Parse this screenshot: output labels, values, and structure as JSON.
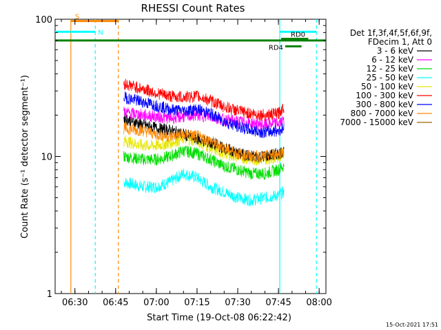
{
  "chart_data": {
    "type": "line",
    "title": "RHESSI Count Rates",
    "xlabel": "Start Time (19-Oct-08 06:22:42)",
    "ylabel": "Count Rate (s⁻¹ detector segment⁻¹)",
    "timestamp": "15-Oct-2021 17:51",
    "xlim": [
      "06:22:42",
      "08:02:30"
    ],
    "ylim": [
      1,
      100
    ],
    "yscale": "log",
    "grid": false,
    "x_ticks": [
      "06:30",
      "06:45",
      "07:00",
      "07:15",
      "07:30",
      "07:45",
      "08:00"
    ],
    "y_ticks": [
      "1",
      "10",
      "100"
    ],
    "legend": {
      "placement": "right",
      "header": [
        "Det 1f,3f,4f,5f,6f,9f,",
        "FDecim 1, Att 0"
      ]
    },
    "series": [
      {
        "name": "3 - 6 keV",
        "color": "#000000",
        "x": [
          "06:48",
          "06:55",
          "07:00",
          "07:05",
          "07:10",
          "07:15",
          "07:20",
          "07:25",
          "07:30",
          "07:35",
          "07:40",
          "07:45",
          "07:47"
        ],
        "values": [
          19,
          17,
          16,
          15.5,
          14.5,
          13.5,
          12.5,
          11.5,
          10.5,
          10,
          10,
          10.5,
          11
        ]
      },
      {
        "name": "6 - 12 keV",
        "color": "#ff00ff",
        "x": [
          "06:48",
          "06:55",
          "07:00",
          "07:05",
          "07:10",
          "07:15",
          "07:20",
          "07:25",
          "07:30",
          "07:35",
          "07:40",
          "07:45",
          "07:47"
        ],
        "values": [
          21,
          20,
          19.5,
          19,
          19.5,
          20,
          19.5,
          18.5,
          18,
          17.5,
          17,
          17.5,
          18
        ]
      },
      {
        "name": "12 - 25 keV",
        "color": "#00dd00",
        "x": [
          "06:48",
          "06:55",
          "07:00",
          "07:05",
          "07:10",
          "07:15",
          "07:20",
          "07:25",
          "07:30",
          "07:35",
          "07:40",
          "07:45",
          "07:47"
        ],
        "values": [
          10,
          9.5,
          9.5,
          10,
          11,
          10.5,
          9.5,
          8.5,
          8,
          7.5,
          7.5,
          8,
          8.5
        ]
      },
      {
        "name": "25 - 50 keV",
        "color": "#00ffff",
        "x": [
          "06:48",
          "06:55",
          "07:00",
          "07:05",
          "07:10",
          "07:15",
          "07:20",
          "07:25",
          "07:30",
          "07:35",
          "07:40",
          "07:45",
          "07:47"
        ],
        "values": [
          6.5,
          6,
          6,
          6.5,
          7.5,
          7,
          6,
          5.5,
          5,
          4.8,
          5,
          5.2,
          5.5
        ]
      },
      {
        "name": "50 - 100 keV",
        "color": "#e6e600",
        "x": [
          "06:48",
          "06:55",
          "07:00",
          "07:05",
          "07:10",
          "07:15",
          "07:20",
          "07:25",
          "07:30",
          "07:35",
          "07:40",
          "07:45",
          "07:47"
        ],
        "values": [
          13,
          12,
          12,
          12.5,
          13.5,
          13,
          11.5,
          10.5,
          10,
          9.5,
          9.5,
          10,
          10.5
        ]
      },
      {
        "name": "100 - 300 keV",
        "color": "#ff0000",
        "x": [
          "06:48",
          "06:55",
          "07:00",
          "07:05",
          "07:10",
          "07:15",
          "07:20",
          "07:25",
          "07:30",
          "07:35",
          "07:40",
          "07:45",
          "07:47"
        ],
        "values": [
          34,
          31,
          29,
          27.5,
          27,
          27.5,
          25.5,
          23,
          21.5,
          20.5,
          20,
          20.5,
          23
        ]
      },
      {
        "name": "300 - 800 keV",
        "color": "#0000ff",
        "x": [
          "06:48",
          "06:55",
          "07:00",
          "07:05",
          "07:10",
          "07:15",
          "07:20",
          "07:25",
          "07:30",
          "07:35",
          "07:40",
          "07:45",
          "07:47"
        ],
        "values": [
          27,
          25,
          23.5,
          22,
          21.5,
          22,
          20.5,
          18,
          16.5,
          15.5,
          15,
          15.5,
          16
        ]
      },
      {
        "name": "800 - 7000 keV",
        "color": "#ff8800",
        "x": [
          "06:48",
          "06:55",
          "07:00",
          "07:05",
          "07:10",
          "07:15",
          "07:20",
          "07:25",
          "07:30",
          "07:35",
          "07:40",
          "07:45",
          "07:47"
        ],
        "values": [
          16,
          15.5,
          14.5,
          14,
          14.5,
          14,
          13,
          11.5,
          10.5,
          10,
          10,
          10.5,
          11
        ]
      },
      {
        "name": "7000 - 15000 keV",
        "color": "#996600",
        "x": [],
        "values": []
      }
    ],
    "annotations": {
      "v_lines": [
        {
          "x": "06:28:30",
          "color": "#ff8800",
          "style": "solid"
        },
        {
          "x": "06:37:30",
          "color": "#00ffff",
          "style": "dashed"
        },
        {
          "x": "06:46:00",
          "color": "#ff8800",
          "style": "dashed"
        },
        {
          "x": "07:45:30",
          "color": "#00ffff",
          "style": "solid"
        },
        {
          "x": "07:59:00",
          "color": "#00ffff",
          "style": "dashed"
        }
      ],
      "h_bars": [
        {
          "label": "S",
          "from": "06:28:30",
          "to": "06:46:00",
          "y": 97,
          "color": "#ff8800"
        },
        {
          "label": "N",
          "from": "06:22:42",
          "to": "06:37:30",
          "y": 81,
          "color": "#00ffff"
        },
        {
          "label": "",
          "from": "07:45:30",
          "to": "07:59:00",
          "y": 81,
          "color": "#00ffff"
        },
        {
          "label": "",
          "from": "06:22:42",
          "to": "08:02:30",
          "y": 70,
          "color": "#008000"
        },
        {
          "label": "RD4",
          "from": "07:47:30",
          "to": "07:53:30",
          "y": 63.5,
          "color": "#008000"
        },
        {
          "label": "RD0",
          "from": "07:46:00",
          "to": "07:56:00",
          "y": 72,
          "color": "#008000"
        }
      ]
    }
  }
}
